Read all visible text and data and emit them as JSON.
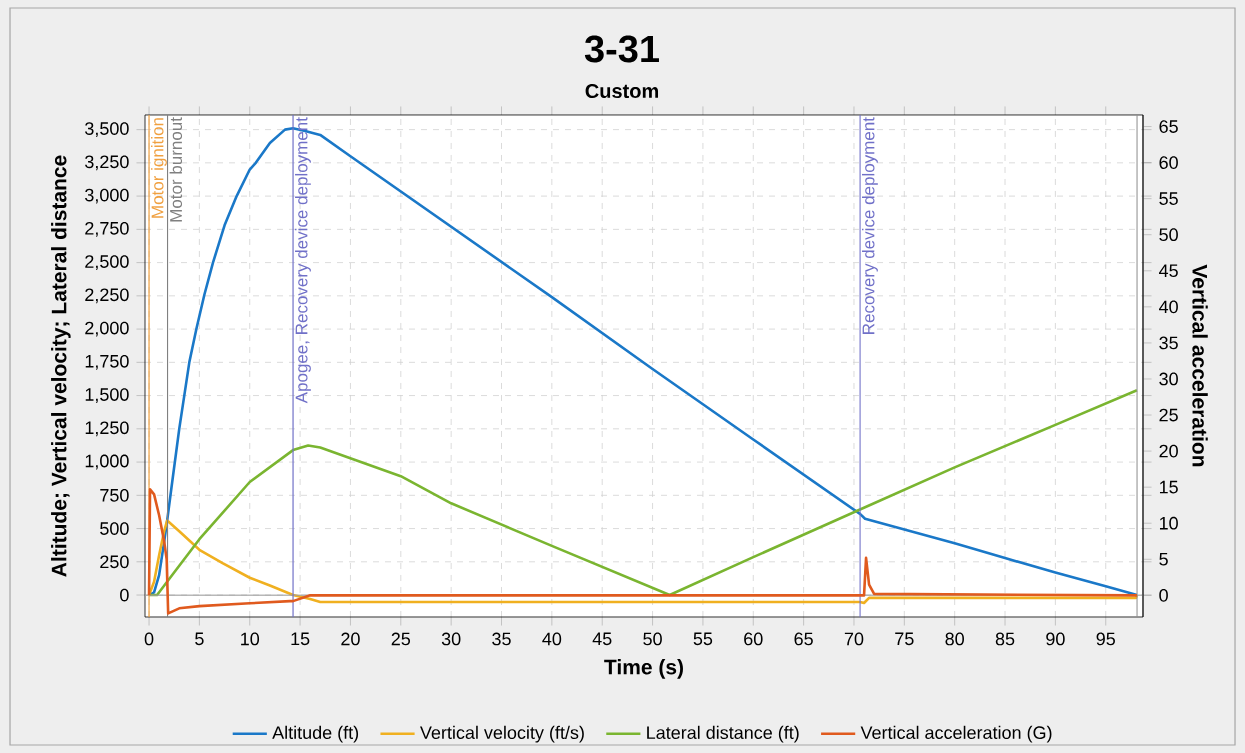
{
  "chart_data": {
    "type": "line",
    "title": "3-31",
    "subtitle": "Custom",
    "xlabel": "Time (s)",
    "ylabel": "Altitude; Vertical velocity; Lateral distance",
    "y2label": "Vertical acceleration",
    "series": [
      {
        "name": "Altitude (ft)",
        "color": "#1a78c8",
        "x": [
          0,
          0.5,
          1,
          1.5,
          1.8,
          2.3,
          3,
          4,
          4.7,
          5.5,
          6.35,
          7.5,
          8.7,
          10,
          10.6,
          12,
          13.5,
          14.3,
          15.5,
          17,
          20,
          30,
          40,
          50,
          60,
          70.6,
          71.1,
          80,
          85,
          90,
          95,
          98.1
        ],
        "values": [
          0,
          20,
          150,
          400,
          560,
          850,
          1250,
          1750,
          2000,
          2260,
          2500,
          2780,
          3000,
          3200,
          3250,
          3400,
          3500,
          3510,
          3490,
          3460,
          3300,
          2770,
          2240,
          1700,
          1170,
          610,
          574,
          390,
          278,
          170,
          66,
          0
        ]
      },
      {
        "name": "Vertical velocity (ft/s)",
        "color": "#f0b020",
        "x": [
          0,
          0.5,
          1,
          1.5,
          1.8,
          3,
          5,
          7.3,
          10,
          12,
          14.3,
          16,
          17,
          70.6,
          71,
          71.5,
          98,
          98.1
        ],
        "values": [
          0,
          100,
          300,
          480,
          560,
          480,
          340,
          240,
          130,
          72,
          0,
          -30,
          -52,
          -52,
          -60,
          -21,
          -21,
          0
        ]
      },
      {
        "name": "Lateral distance (ft)",
        "color": "#7ab530",
        "x": [
          0,
          0.8,
          2,
          5,
          10,
          14.3,
          15.8,
          17,
          25,
          30,
          40,
          51.7,
          60,
          70.6,
          71.1,
          80,
          90,
          98.1
        ],
        "values": [
          0,
          0,
          120,
          420,
          850,
          1090,
          1125,
          1110,
          894,
          690,
          370,
          0,
          285,
          643,
          660,
          960,
          1280,
          1540
        ]
      },
      {
        "name": "Vertical acceleration (G)",
        "color": "#e05a1e",
        "axis": "y2",
        "x": [
          0,
          0.1,
          0.5,
          1,
          1.5,
          1.75,
          1.9,
          3,
          5,
          10,
          14,
          14.3,
          16,
          71,
          71.2,
          71.5,
          72,
          98.1
        ],
        "values": [
          0,
          14.7,
          14,
          11.1,
          7.5,
          5,
          -2.5,
          -1.8,
          -1.5,
          -1.1,
          -0.8,
          -0.8,
          0,
          0,
          5.2,
          1.5,
          0.2,
          0
        ]
      }
    ],
    "xlim": [
      -0.4,
      98.7
    ],
    "ylim": [
      -165,
      3610
    ],
    "y2lim": [
      -3,
      66.6
    ],
    "xticks": [
      0,
      5,
      10,
      15,
      20,
      25,
      30,
      35,
      40,
      45,
      50,
      55,
      60,
      65,
      70,
      75,
      80,
      85,
      90,
      95
    ],
    "yticks": [
      0,
      250,
      500,
      750,
      {
        "value": 1000,
        "label": "1,000"
      },
      {
        "value": 1250,
        "label": "1,250"
      },
      {
        "value": 1500,
        "label": "1,500"
      },
      {
        "value": 1750,
        "label": "1,750"
      },
      {
        "value": 2000,
        "label": "2,000"
      },
      {
        "value": 2250,
        "label": "2,250"
      },
      {
        "value": 2500,
        "label": "2,500"
      },
      {
        "value": 2750,
        "label": "2,750"
      },
      {
        "value": 3000,
        "label": "3,000"
      },
      {
        "value": 3250,
        "label": "3,250"
      },
      {
        "value": 3500,
        "label": "3,500"
      }
    ],
    "y2ticks": [
      0,
      5,
      10,
      15,
      20,
      25,
      30,
      35,
      40,
      45,
      50,
      55,
      60,
      65
    ],
    "ref_lines": [
      {
        "axis": "y",
        "value": 0,
        "color": "#a0a0a0"
      },
      {
        "axis": "x",
        "value": 0,
        "label": "Motor ignition",
        "color": "#f0a040"
      },
      {
        "axis": "x",
        "value": 1.84,
        "label": "Motor burnout",
        "color": "#808080"
      },
      {
        "axis": "x",
        "value": 14.3,
        "label": "Apogee, Recovery device deployment",
        "color": "#7070c8"
      },
      {
        "axis": "x",
        "value": 70.6,
        "label": "Recovery device deployment",
        "color": "#7070c8"
      },
      {
        "axis": "x",
        "value": 98.1,
        "color": "#909090"
      }
    ],
    "grid": true,
    "legend": "bottom"
  }
}
